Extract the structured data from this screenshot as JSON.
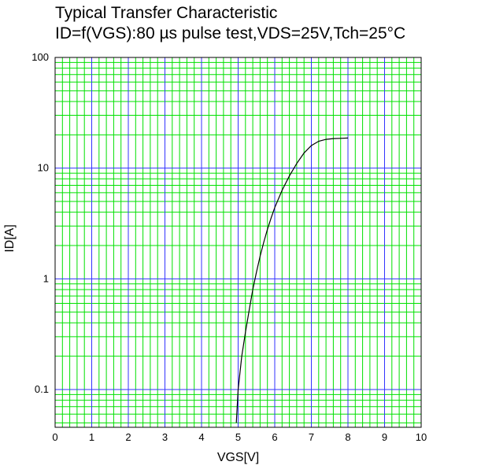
{
  "chart_data": {
    "type": "line",
    "title": "Typical Transfer Characteristic",
    "subtitle": "ID=f(VGS):80 µs pulse test,VDS=25V,Tch=25°C",
    "xlabel": "VGS[V]",
    "ylabel": "ID[A]",
    "xlim": [
      0,
      10
    ],
    "ylim": [
      0.05,
      100
    ],
    "yscale": "log",
    "x_ticks": [
      "0",
      "1",
      "2",
      "3",
      "4",
      "5",
      "6",
      "7",
      "8",
      "9",
      "10"
    ],
    "y_ticks": [
      "0.1",
      "1",
      "10",
      "100"
    ],
    "grid": true,
    "series": [
      {
        "x": [
          4.95,
          5.0,
          5.1,
          5.2,
          5.3,
          5.4,
          5.5,
          5.6,
          5.7,
          5.8,
          5.9,
          6.0,
          6.2,
          6.4,
          6.6,
          6.8,
          7.0,
          7.2,
          7.4,
          7.6,
          7.8,
          8.0
        ],
        "y": [
          0.05,
          0.1,
          0.2,
          0.33,
          0.52,
          0.8,
          1.15,
          1.6,
          2.15,
          2.8,
          3.55,
          4.4,
          6.3,
          8.5,
          11.0,
          13.7,
          16.0,
          17.5,
          18.2,
          18.5,
          18.6,
          18.7
        ]
      }
    ],
    "colors": {
      "major_grid": "#3333ff",
      "minor_grid": "#00e000",
      "line": "#000000",
      "frame": "#000000"
    }
  }
}
